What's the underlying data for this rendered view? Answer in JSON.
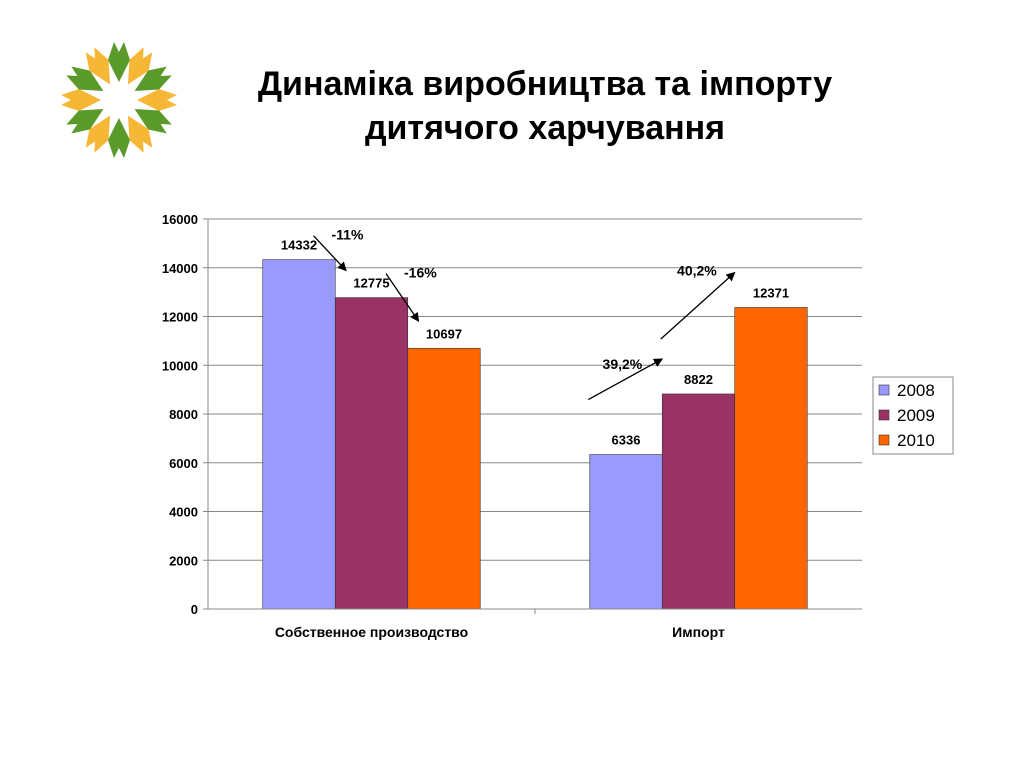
{
  "slide": {
    "title_lines": [
      "Динаміка виробництва та імпорту",
      "дитячого харчування"
    ],
    "logo": {
      "icon": "green-yellow-flower-logo",
      "colors": [
        "#5a9a2a",
        "#f7b736"
      ]
    }
  },
  "chart_data": {
    "type": "bar",
    "categories": [
      "Собственное производство",
      "Импорт"
    ],
    "series": [
      {
        "name": "2008",
        "color": "#9999ff",
        "values": [
          14332,
          6336
        ]
      },
      {
        "name": "2009",
        "color": "#993366",
        "values": [
          12775,
          8822
        ]
      },
      {
        "name": "2010",
        "color": "#ff6600",
        "values": [
          10697,
          12371
        ]
      }
    ],
    "ylim": [
      0,
      16000
    ],
    "yticks": [
      0,
      2000,
      4000,
      6000,
      8000,
      10000,
      12000,
      14000,
      16000
    ],
    "grid": true,
    "legend": "right",
    "annotations": [
      {
        "text": "-11%",
        "from_series": 0,
        "to_series": 1,
        "category": 0
      },
      {
        "text": "-16%",
        "from_series": 1,
        "to_series": 2,
        "category": 0
      },
      {
        "text": "39,2%",
        "from_series": 0,
        "to_series": 1,
        "category": 1
      },
      {
        "text": "40,2%",
        "from_series": 1,
        "to_series": 2,
        "category": 1
      }
    ]
  }
}
